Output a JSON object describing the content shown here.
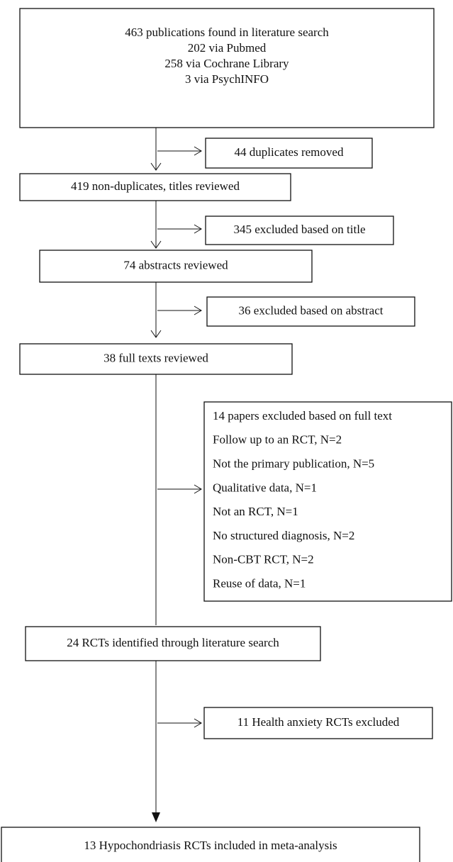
{
  "nodes": [
    {
      "lines": [
        "463 publications found in literature search",
        "202 via Pubmed",
        "258 via Cochrane Library",
        "3 via PsychINFO"
      ]
    },
    {
      "lines": [
        "44 duplicates removed"
      ]
    },
    {
      "lines": [
        "419 non-duplicates, titles reviewed"
      ]
    },
    {
      "lines": [
        "345 excluded based on title"
      ]
    },
    {
      "lines": [
        "74 abstracts reviewed"
      ]
    },
    {
      "lines": [
        "36 excluded based on abstract"
      ]
    },
    {
      "lines": [
        "38 full texts reviewed"
      ]
    },
    {
      "lines": [
        "14 papers excluded based on full text",
        "Follow up to an RCT, N=2",
        "Not the primary publication, N=5",
        "Qualitative data, N=1",
        "Not an RCT, N=1",
        "No structured diagnosis, N=2",
        "Non-CBT RCT, N=2",
        "Reuse of data, N=1"
      ]
    },
    {
      "lines": [
        "24 RCTs identified through literature search"
      ]
    },
    {
      "lines": [
        "11 Health anxiety RCTs excluded"
      ]
    },
    {
      "lines": [
        "13 Hypochondriasis RCTs included in meta-analysis"
      ]
    }
  ]
}
